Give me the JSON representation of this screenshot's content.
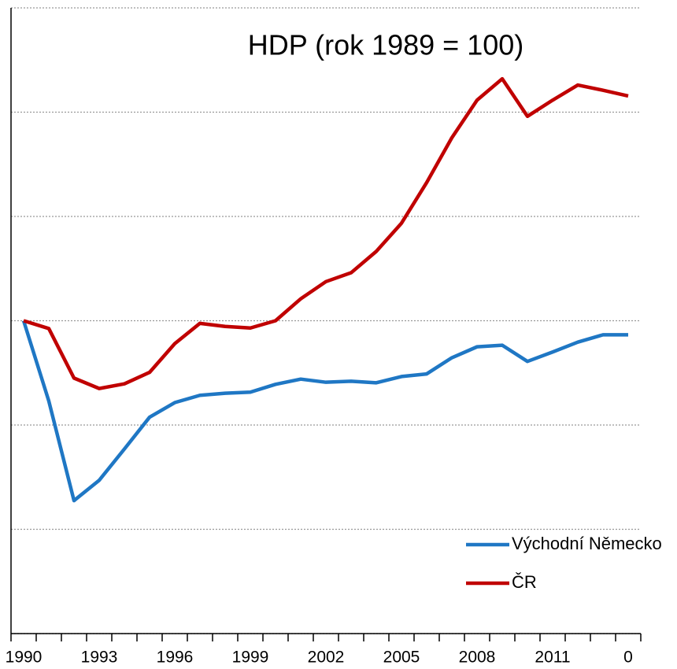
{
  "chart_data": {
    "type": "line",
    "title": "HDP (rok 1989 = 100)",
    "categories": [
      "1990",
      null,
      null,
      "1993",
      null,
      null,
      "1996",
      null,
      null,
      "1999",
      null,
      null,
      "2002",
      null,
      null,
      "2005",
      null,
      null,
      "2008",
      null,
      null,
      "2011",
      null,
      null,
      "0"
    ],
    "series": [
      {
        "name": "Východní Německo",
        "color": "#1f77c4",
        "values": [
          100,
          84.6,
          65.5,
          69.4,
          75.4,
          81.5,
          84.3,
          85.7,
          86.1,
          86.3,
          87.8,
          88.8,
          88.2,
          88.4,
          88.1,
          89.3,
          89.8,
          92.9,
          95.0,
          95.3,
          92.2,
          94.0,
          95.9,
          97.3,
          97.3
        ]
      },
      {
        "name": "ČR",
        "color": "#c00000",
        "values": [
          100,
          98.5,
          89.0,
          87.0,
          87.9,
          90.1,
          95.6,
          99.5,
          98.9,
          98.6,
          100,
          104.2,
          107.5,
          109.2,
          113.3,
          118.7,
          126.5,
          135.1,
          142.3,
          146.4,
          139.2,
          142.3,
          145.2,
          144.2,
          143.1
        ]
      }
    ],
    "ylim": [
      40,
      160
    ],
    "yticks": [
      40,
      60,
      80,
      100,
      120,
      140,
      160
    ],
    "grid": true,
    "legend": "bottom-right"
  }
}
